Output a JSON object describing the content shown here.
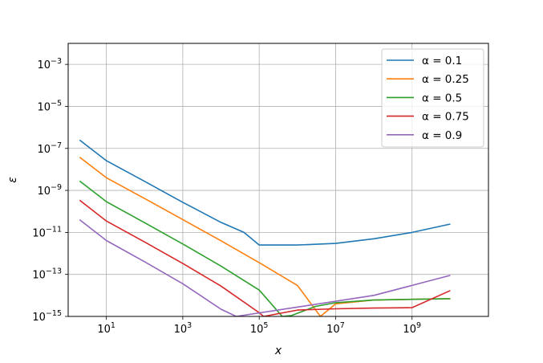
{
  "chart_data": {
    "type": "line",
    "xlabel": "x",
    "ylabel": "ε",
    "xscale": "log",
    "yscale": "log",
    "xlim": [
      1,
      100000000000
    ],
    "ylim": [
      1e-15,
      0.01
    ],
    "grid": true,
    "legend_position": "top-right",
    "x_ticks": [
      {
        "value": 10,
        "base": "10",
        "exp": "1"
      },
      {
        "value": 1000,
        "base": "10",
        "exp": "3"
      },
      {
        "value": 100000,
        "base": "10",
        "exp": "5"
      },
      {
        "value": 10000000,
        "base": "10",
        "exp": "7"
      },
      {
        "value": 1000000000,
        "base": "10",
        "exp": "9"
      }
    ],
    "y_ticks": [
      {
        "value": 1e-15,
        "base": "10",
        "exp": "−15"
      },
      {
        "value": 1e-13,
        "base": "10",
        "exp": "−13"
      },
      {
        "value": 1e-11,
        "base": "10",
        "exp": "−11"
      },
      {
        "value": 1e-09,
        "base": "10",
        "exp": "−9"
      },
      {
        "value": 1e-07,
        "base": "10",
        "exp": "−7"
      },
      {
        "value": 1e-05,
        "base": "10",
        "exp": "−5"
      },
      {
        "value": 0.001,
        "base": "10",
        "exp": "−3"
      }
    ],
    "series": [
      {
        "name": "α = 0.1",
        "color": "#1f77b4",
        "x": [
          2,
          10,
          100,
          1000,
          10000,
          40000,
          100000,
          300000,
          1000000,
          10000000,
          100000000,
          1000000000,
          10000000000
        ],
        "y": [
          2.5e-07,
          2.6e-08,
          2.7e-09,
          2.7e-10,
          3e-11,
          1e-11,
          2.5e-12,
          2.5e-12,
          2.5e-12,
          3e-12,
          5e-12,
          1e-11,
          2.5e-11
        ]
      },
      {
        "name": "α = 0.25",
        "color": "#ff7f0e",
        "x": [
          2,
          10,
          100,
          1000,
          10000,
          100000,
          1000000,
          4000000,
          10000000,
          100000000,
          1000000000,
          10000000000
        ],
        "y": [
          3.8e-08,
          4e-09,
          4.1e-10,
          4.1e-11,
          4e-12,
          3.6e-13,
          3e-14,
          1e-15,
          4e-15,
          6e-15,
          6.5e-15,
          7e-15
        ]
      },
      {
        "name": "α = 0.5",
        "color": "#2ca02c",
        "x": [
          2,
          10,
          100,
          1000,
          10000,
          100000,
          400000,
          700000,
          3000000,
          10000000,
          100000000,
          1000000000,
          10000000000
        ],
        "y": [
          2.8e-09,
          2.9e-10,
          2.9e-11,
          2.8e-12,
          2.5e-13,
          1.8e-14,
          1e-15,
          1.1e-15,
          3e-15,
          4.5e-15,
          6e-15,
          6.5e-15,
          7e-15
        ]
      },
      {
        "name": "α = 0.75",
        "color": "#d62728",
        "x": [
          2,
          10,
          100,
          1000,
          10000,
          100000,
          130000,
          1000000,
          10000000,
          100000000,
          1000000000,
          10000000000
        ],
        "y": [
          3.4e-10,
          3.5e-11,
          3.5e-12,
          3.3e-13,
          2.8e-14,
          1.5e-15,
          1e-15,
          2e-15,
          2.3e-15,
          2.5e-15,
          2.6e-15,
          1.7e-14
        ]
      },
      {
        "name": "α = 0.9",
        "color": "#9467bd",
        "x": [
          2,
          10,
          100,
          1000,
          10000,
          25000,
          100000000,
          1000000000,
          10000000000
        ],
        "y": [
          4e-11,
          4.1e-12,
          4e-13,
          3.6e-14,
          2.2e-15,
          1e-15,
          1e-14,
          3e-14,
          9e-14
        ]
      }
    ]
  }
}
